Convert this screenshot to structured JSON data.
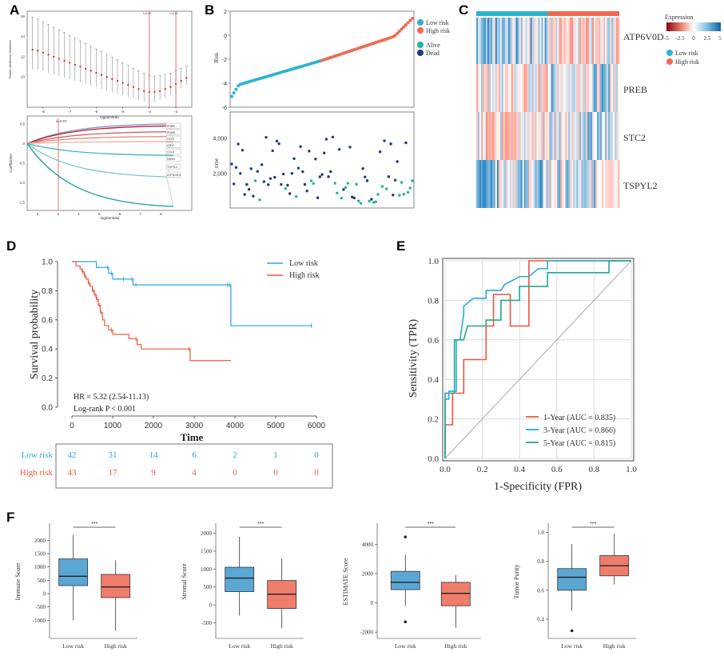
{
  "panel_labels": [
    "A",
    "B",
    "C",
    "D",
    "E",
    "F"
  ],
  "colors": {
    "low": "#2bb3d1",
    "high": "#f0694f",
    "dead": "#1f3a78",
    "alive": "#1fb39c",
    "km_low": "#29a8d8",
    "km_high": "#ef5a3c",
    "roc1": "#f0553c",
    "roc3": "#29aad8",
    "roc5": "#1fa98f",
    "box_low": "#5ba7d3",
    "box_high": "#ef7d6c"
  },
  "chart_data": [
    {
      "id": "A_top",
      "type": "scatter",
      "xlabel": "log(lambda)",
      "ylabel": "Partial Likelihood Deviance",
      "xticks": [
        "-8",
        "-7",
        "-6",
        "-5",
        "-4",
        "-3"
      ],
      "yticks": [
        "10",
        "12",
        "14",
        "16"
      ],
      "top_labels": [
        "λ=0.07",
        "λ=0.15"
      ],
      "x": [
        -8.4,
        -8.2,
        -8.0,
        -7.8,
        -7.6,
        -7.4,
        -7.2,
        -7.0,
        -6.8,
        -6.6,
        -6.4,
        -6.2,
        -6.0,
        -5.8,
        -5.6,
        -5.4,
        -5.2,
        -5.0,
        -4.8,
        -4.6,
        -4.4,
        -4.2,
        -4.0,
        -3.8,
        -3.6,
        -3.4,
        -3.2,
        -3.0,
        -2.8,
        -2.6
      ],
      "values": [
        12.7,
        12.6,
        12.4,
        12.2,
        12.0,
        11.8,
        11.6,
        11.4,
        11.2,
        11.0,
        10.8,
        10.6,
        10.4,
        10.2,
        10.0,
        9.8,
        9.6,
        9.4,
        9.2,
        9.0,
        8.8,
        8.6,
        8.5,
        8.5,
        8.6,
        8.8,
        9.0,
        9.3,
        9.6,
        9.9
      ],
      "xlim": [
        -8.6,
        -2.4
      ],
      "ylim": [
        7,
        16.5
      ]
    },
    {
      "id": "A_bottom",
      "type": "line",
      "xlabel": "-log(lambda)",
      "ylabel": "Coefficients",
      "xticks": [
        "2",
        "3",
        "4",
        "5",
        "6",
        "7",
        "8"
      ],
      "yticks": [
        "0.5",
        "0",
        "-0.5",
        "-1.0",
        "-1.5"
      ],
      "top_label": "λ=0.07",
      "genes": [
        "PREB",
        "PDIA6",
        "STC2",
        "ATF4",
        "CCL2",
        "PARN",
        "TSPYL2",
        "ATP6V0D1"
      ],
      "xlim": [
        1.5,
        9.5
      ],
      "ylim": [
        -1.7,
        0.7
      ]
    },
    {
      "id": "B_top",
      "type": "scatter",
      "ylabel": "Risk",
      "yticks": [
        "2",
        "0",
        "-2",
        "-4",
        "-6"
      ],
      "ylim": [
        -6,
        2
      ],
      "legend": [
        "Low risk",
        "High risk",
        "Alive",
        "Dead"
      ]
    },
    {
      "id": "B_bottom",
      "type": "scatter",
      "ylabel": "time",
      "yticks": [
        "4,000",
        "2,000"
      ],
      "ylim": [
        0,
        5500
      ]
    },
    {
      "id": "C",
      "type": "heatmap",
      "rows": [
        "ATP6V0D",
        "PREB",
        "STC2",
        "TSPYL2"
      ],
      "legend_title": "Expression",
      "legend_ticks": [
        "-5",
        "-2.5",
        "0",
        "2.5",
        "5"
      ],
      "legend_groups": [
        "Low risk",
        "High risk"
      ]
    },
    {
      "id": "D",
      "type": "line",
      "xlabel": "Time",
      "ylabel": "Survival probability",
      "xticks": [
        "0",
        "1000",
        "2000",
        "3000",
        "4000",
        "5000",
        "6000"
      ],
      "yticks": [
        "1.0",
        "0.8",
        "0.6",
        "0.4",
        "0.2",
        "0.0"
      ],
      "xlim": [
        0,
        6000
      ],
      "ylim": [
        0,
        1
      ],
      "legend": [
        "Low risk",
        "High risk"
      ],
      "annotation_hr": "HR = 5.32 (2.54-11.13)",
      "annotation_p": "Log-rank P < 0.001",
      "series": [
        {
          "name": "Low risk",
          "x": [
            0,
            600,
            900,
            1000,
            1300,
            1500,
            1600,
            3850,
            3900,
            5900
          ],
          "values": [
            1.0,
            0.96,
            0.92,
            0.88,
            0.88,
            0.84,
            0.84,
            0.84,
            0.56,
            0.56
          ]
        },
        {
          "name": "High risk",
          "x": [
            0,
            100,
            200,
            250,
            300,
            350,
            400,
            450,
            500,
            550,
            600,
            650,
            700,
            750,
            800,
            900,
            1000,
            1100,
            1200,
            1400,
            1600,
            1700,
            2900,
            3900
          ],
          "values": [
            1.0,
            0.97,
            0.95,
            0.93,
            0.9,
            0.88,
            0.85,
            0.83,
            0.8,
            0.77,
            0.74,
            0.7,
            0.65,
            0.6,
            0.56,
            0.53,
            0.5,
            0.5,
            0.5,
            0.47,
            0.43,
            0.4,
            0.32,
            0.32
          ]
        }
      ],
      "risk_table": {
        "rows": [
          {
            "label": "Low risk",
            "values": [
              "42",
              "31",
              "14",
              "6",
              "2",
              "1",
              "0"
            ]
          },
          {
            "label": "High risk",
            "values": [
              "43",
              "17",
              "9",
              "4",
              "0",
              "0",
              "0"
            ]
          }
        ]
      }
    },
    {
      "id": "E",
      "type": "line",
      "xlabel": "1-Specificity (FPR)",
      "ylabel": "Sensitivity (TPR)",
      "xticks": [
        "0.0",
        "0.2",
        "0.4",
        "0.6",
        "0.8",
        "1.0"
      ],
      "yticks": [
        "1.0",
        "0.8",
        "0.6",
        "0.4",
        "0.2",
        "0.0"
      ],
      "xlim": [
        0,
        1
      ],
      "ylim": [
        0,
        1
      ],
      "series": [
        {
          "name": "1-Year (AUC = 0.835)",
          "x": [
            0,
            0,
            0.04,
            0.04,
            0.08,
            0.1,
            0.1,
            0.22,
            0.22,
            0.26,
            0.26,
            0.3,
            0.35,
            0.35,
            0.45,
            0.45,
            0.55,
            1.0
          ],
          "values": [
            0,
            0.17,
            0.17,
            0.33,
            0.33,
            0.33,
            0.5,
            0.5,
            0.67,
            0.67,
            0.83,
            0.83,
            0.83,
            0.67,
            0.67,
            1.0,
            1.0,
            1.0
          ]
        },
        {
          "name": "3-Year (AUC = 0.866)",
          "x": [
            0,
            0,
            0.02,
            0.02,
            0.06,
            0.06,
            0.08,
            0.1,
            0.1,
            0.15,
            0.22,
            0.22,
            0.3,
            0.32,
            0.4,
            0.45,
            0.5,
            0.55,
            0.55,
            0.9,
            1.0
          ],
          "values": [
            0,
            0.3,
            0.3,
            0.34,
            0.34,
            0.6,
            0.6,
            0.73,
            0.77,
            0.81,
            0.81,
            0.85,
            0.85,
            0.88,
            0.92,
            0.92,
            0.96,
            0.96,
            1.0,
            1.0,
            1.0
          ]
        },
        {
          "name": "5-Year (AUC = 0.815)",
          "x": [
            0,
            0,
            0.05,
            0.05,
            0.1,
            0.12,
            0.22,
            0.22,
            0.3,
            0.3,
            0.4,
            0.4,
            0.5,
            0.55,
            0.55,
            0.88,
            0.88,
            1.0
          ],
          "values": [
            0,
            0.33,
            0.33,
            0.6,
            0.6,
            0.67,
            0.67,
            0.7,
            0.7,
            0.8,
            0.8,
            0.87,
            0.87,
            0.87,
            0.94,
            0.94,
            1.0,
            1.0
          ]
        }
      ]
    },
    {
      "id": "F",
      "type": "box",
      "categories": [
        "Low risk",
        "High risk"
      ],
      "significance": "***",
      "panels": [
        {
          "ylabel": "Immune Score",
          "yticks": [
            "2000",
            "1500",
            "1000",
            "500",
            "0",
            "-500",
            "-1000"
          ],
          "ylim": [
            -1500,
            2400
          ],
          "boxes": [
            {
              "min": -1000,
              "q1": 300,
              "median": 650,
              "q3": 1300,
              "max": 2200,
              "outliers": []
            },
            {
              "min": -1400,
              "q1": -150,
              "median": 250,
              "q3": 720,
              "max": 1250,
              "outliers": []
            }
          ]
        },
        {
          "ylabel": "Stromal Score",
          "yticks": [
            "2000",
            "1500",
            "1000",
            "500",
            "0",
            "-500"
          ],
          "ylim": [
            -800,
            2100
          ],
          "boxes": [
            {
              "min": -300,
              "q1": 370,
              "median": 750,
              "q3": 1050,
              "max": 1900,
              "outliers": []
            },
            {
              "min": -650,
              "q1": -100,
              "median": 300,
              "q3": 680,
              "max": 1300,
              "outliers": []
            }
          ]
        },
        {
          "ylabel": "ESTIMATE Score",
          "yticks": [
            "4000",
            "2000",
            "0",
            "-2000"
          ],
          "ylim": [
            -2100,
            5000
          ],
          "boxes": [
            {
              "min": -200,
              "q1": 900,
              "median": 1400,
              "q3": 2150,
              "max": 3300,
              "outliers": [
                4500,
                -1300
              ]
            },
            {
              "min": -1700,
              "q1": -200,
              "median": 650,
              "q3": 1400,
              "max": 1900,
              "outliers": []
            }
          ]
        },
        {
          "ylabel": "Tumor Purity",
          "yticks": [
            "1.0",
            "0.8",
            "0.6",
            "0.4"
          ],
          "ylim": [
            0.3,
            1.02
          ],
          "boxes": [
            {
              "min": 0.46,
              "q1": 0.6,
              "median": 0.69,
              "q3": 0.75,
              "max": 0.92,
              "outliers": [
                0.32
              ]
            },
            {
              "min": 0.64,
              "q1": 0.7,
              "median": 0.77,
              "q3": 0.84,
              "max": 0.99,
              "outliers": []
            }
          ]
        }
      ]
    }
  ]
}
